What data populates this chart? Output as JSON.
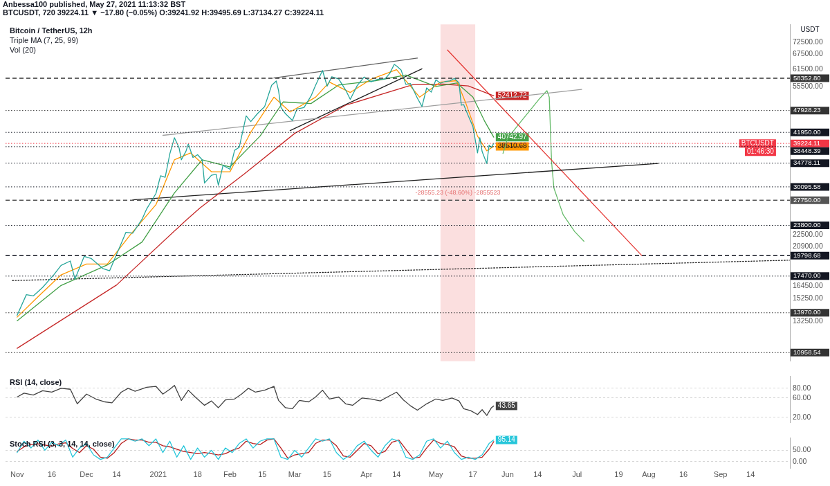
{
  "chart_data": [
    {
      "type": "other",
      "title": "Anbessa100 published, May 27, 2021 11:13:32 BST",
      "annotations": [
        "BTCUSDT, 720  39224.11 ▼ −17.80 (−0.05%) O:39241.92 H:39495.69 L:37134.27 C:39224.11"
      ]
    },
    {
      "type": "line",
      "title": "Bitcoin / TetherUS, 12h",
      "ylabel": "USDT",
      "log": true,
      "marker": "none",
      "tick_labels": "y",
      "xlim": [
        "2020-10-27",
        "2021-10-01"
      ],
      "ylim": [
        10400,
        81000
      ],
      "yticks": [
        {
          "value": 13250,
          "label": "13250.00"
        },
        {
          "value": 15250,
          "label": "15250.00"
        },
        {
          "value": 16450,
          "label": "16450.00"
        },
        {
          "value": 20900,
          "label": "20900.00"
        },
        {
          "value": 22500,
          "label": "22500.00"
        },
        {
          "value": 55500,
          "label": "55500.00"
        },
        {
          "value": 61500,
          "label": "61500.00"
        },
        {
          "value": 67500,
          "label": "67500.00"
        },
        {
          "value": 72500,
          "label": "72500.00"
        }
      ],
      "series": [
        {
          "color": "#26a69a",
          "x": [
            "2020-11-01",
            "2020-11-05",
            "2020-11-08",
            "2020-11-12",
            "2020-11-17",
            "2020-11-20",
            "2020-11-24",
            "2020-11-26",
            "2020-11-30",
            "2020-12-03",
            "2020-12-08",
            "2020-12-11",
            "2020-12-16",
            "2020-12-18",
            "2020-12-21",
            "2020-12-25",
            "2020-12-27",
            "2020-12-31",
            "2021-01-02",
            "2021-01-04",
            "2021-01-06",
            "2021-01-08",
            "2021-01-10",
            "2021-01-11",
            "2021-01-13",
            "2021-01-14",
            "2021-01-16",
            "2021-01-18",
            "2021-01-20",
            "2021-01-21",
            "2021-01-24",
            "2021-01-26",
            "2021-01-27",
            "2021-01-29",
            "2021-02-01",
            "2021-02-03",
            "2021-02-05",
            "2021-02-08",
            "2021-02-10",
            "2021-02-13",
            "2021-02-16",
            "2021-02-19",
            "2021-02-21",
            "2021-02-22",
            "2021-02-23",
            "2021-02-25",
            "2021-02-28",
            "2021-03-02",
            "2021-03-05",
            "2021-03-08",
            "2021-03-10",
            "2021-03-13",
            "2021-03-15",
            "2021-03-17",
            "2021-03-20",
            "2021-03-23",
            "2021-03-25",
            "2021-03-28",
            "2021-03-31",
            "2021-04-03",
            "2021-04-06",
            "2021-04-09",
            "2021-04-11",
            "2021-04-13",
            "2021-04-14",
            "2021-04-16",
            "2021-04-18",
            "2021-04-20",
            "2021-04-23",
            "2021-04-25",
            "2021-04-27",
            "2021-04-29",
            "2021-05-01",
            "2021-05-03",
            "2021-05-05",
            "2021-05-07",
            "2021-05-09",
            "2021-05-11",
            "2021-05-12",
            "2021-05-13",
            "2021-05-15",
            "2021-05-17",
            "2021-05-19",
            "2021-05-20",
            "2021-05-21",
            "2021-05-23",
            "2021-05-24",
            "2021-05-25",
            "2021-05-26"
          ],
          "values": [
            13750,
            15600,
            15480,
            16300,
            17650,
            18650,
            19150,
            17150,
            19700,
            19450,
            18300,
            18050,
            21300,
            22800,
            22700,
            24700,
            26300,
            28900,
            32200,
            31900,
            36800,
            40600,
            38200,
            35500,
            37400,
            39100,
            36000,
            36600,
            35500,
            30800,
            32300,
            32500,
            30400,
            34300,
            33500,
            37600,
            38300,
            46400,
            44800,
            47100,
            49100,
            55900,
            57400,
            54100,
            48900,
            47000,
            45100,
            48400,
            48800,
            52300,
            55900,
            61200,
            55600,
            58900,
            58100,
            54300,
            51300,
            55800,
            58800,
            57100,
            58000,
            58100,
            60000,
            63500,
            62900,
            61300,
            56200,
            56500,
            51700,
            49100,
            55000,
            53600,
            57800,
            56600,
            57200,
            57400,
            58300,
            56700,
            49500,
            49700,
            46400,
            43500,
            37000,
            40600,
            37300,
            34700,
            38800,
            38300,
            39224.11
          ]
        },
        {
          "color": "#ff9800",
          "x": [
            "2020-11-01",
            "2020-11-10",
            "2020-11-20",
            "2020-12-01",
            "2020-12-10",
            "2020-12-20",
            "2020-12-31",
            "2021-01-08",
            "2021-01-15",
            "2021-01-24",
            "2021-02-01",
            "2021-02-10",
            "2021-02-20",
            "2021-02-27",
            "2021-03-10",
            "2021-03-16",
            "2021-03-25",
            "2021-04-03",
            "2021-04-14",
            "2021-04-24",
            "2021-05-03",
            "2021-05-10",
            "2021-05-14",
            "2021-05-19",
            "2021-05-23",
            "2021-05-26"
          ],
          "values": [
            13600,
            15400,
            17600,
            18800,
            18800,
            22500,
            27000,
            35500,
            37000,
            33000,
            33000,
            42000,
            52000,
            47500,
            52000,
            57000,
            53500,
            58000,
            61500,
            52000,
            57000,
            57500,
            50000,
            41000,
            37500,
            38510.69
          ],
          "value_labels": [
            null,
            null,
            null,
            null,
            null,
            null,
            null,
            null,
            null,
            null,
            null,
            null,
            null,
            null,
            null,
            null,
            null,
            null,
            null,
            null,
            null,
            null,
            null,
            null,
            null,
            "38510.69"
          ]
        },
        {
          "color": "#43a047",
          "x": [
            "2020-11-01",
            "2020-11-20",
            "2020-12-10",
            "2020-12-25",
            "2021-01-08",
            "2021-01-20",
            "2021-02-01",
            "2021-02-14",
            "2021-02-24",
            "2021-03-08",
            "2021-03-20",
            "2021-04-05",
            "2021-04-18",
            "2021-05-01",
            "2021-05-10",
            "2021-05-17",
            "2021-05-22",
            "2021-05-26"
          ],
          "values": [
            13300,
            16500,
            18700,
            21500,
            29000,
            35500,
            34000,
            41000,
            50500,
            50000,
            56000,
            57500,
            59500,
            55500,
            56700,
            52000,
            45000,
            40742.97
          ],
          "value_labels": [
            null,
            null,
            null,
            null,
            null,
            null,
            null,
            null,
            null,
            null,
            null,
            null,
            null,
            null,
            null,
            null,
            null,
            "40742.97"
          ]
        },
        {
          "color": "#c62828",
          "x": [
            "2020-11-01",
            "2020-12-14",
            "2021-01-13",
            "2021-01-19",
            "2021-02-07",
            "2021-03-01",
            "2021-03-23",
            "2021-04-21",
            "2021-05-04",
            "2021-05-15",
            "2021-05-26"
          ],
          "values": [
            11250,
            16550,
            24550,
            26450,
            32500,
            41700,
            49500,
            56100,
            56300,
            55700,
            52412.72
          ],
          "value_labels": [
            null,
            null,
            null,
            null,
            null,
            null,
            null,
            null,
            null,
            null,
            "52412.72"
          ]
        },
        {
          "color": "#212121",
          "x": [
            "2020-12-21",
            "2021-08-05"
          ],
          "values": [
            27800,
            34700
          ]
        },
        {
          "color": "#9e9e9e",
          "x": [
            "2021-01-03",
            "2021-07-03"
          ],
          "values": [
            41200,
            54500
          ]
        },
        {
          "color": "#616161",
          "x": [
            "2021-02-20",
            "2021-04-23"
          ],
          "values": [
            58450,
            66000
          ]
        },
        {
          "color": "#212121",
          "x": [
            "2021-02-27",
            "2021-04-25"
          ],
          "values": [
            42400,
            61800
          ]
        },
        {
          "color": "#e53935",
          "x": [
            "2021-05-06",
            "2021-07-29"
          ],
          "values": [
            69300,
            19800
          ]
        },
        {
          "color": "#66bb6a",
          "x": [
            "2021-05-30",
            "2021-06-01",
            "2021-06-08",
            "2021-06-15",
            "2021-06-18",
            "2021-06-19",
            "2021-06-20",
            "2021-06-21",
            "2021-06-25",
            "2021-06-30",
            "2021-07-04"
          ],
          "values": [
            36900,
            40500,
            45800,
            51700,
            54100,
            52000,
            35100,
            29900,
            25400,
            22900,
            21600
          ]
        },
        {
          "color": "#212121",
          "line_style": "dotted",
          "x": [
            "2020-10-30",
            "2021-10-01"
          ],
          "values": [
            17000,
            19250
          ]
        }
      ],
      "ref_lines": [
        {
          "axis": "y",
          "value": 58352.8,
          "label": "58352.80",
          "color": "#333333",
          "line_style": "dashed"
        },
        {
          "axis": "y",
          "value": 47928.23,
          "label": "47928.23",
          "color": "#333333",
          "line_style": "dotted"
        },
        {
          "axis": "y",
          "value": 41950,
          "label": "41950.00",
          "color": "#131722",
          "line_style": "dotted"
        },
        {
          "axis": "y",
          "value": 39224.11,
          "label": "39224.11",
          "color": "#f23645",
          "line_style": "dotted"
        },
        {
          "axis": "y",
          "value": 38448.39,
          "label": "38448.39",
          "color": "#131722",
          "line_style": "dotted"
        },
        {
          "axis": "y",
          "value": 34778.11,
          "label": "34778.11",
          "color": "#131722",
          "line_style": "dotted"
        },
        {
          "axis": "y",
          "value": 30095.58,
          "label": "30095.58",
          "color": "#131722",
          "line_style": "dotted"
        },
        {
          "axis": "y",
          "value": 27750,
          "label": "27750.00",
          "color": "#555555",
          "line_style": "dashed"
        },
        {
          "axis": "y",
          "value": 23800,
          "label": "23800.00",
          "color": "#131722",
          "line_style": "dotted"
        },
        {
          "axis": "y",
          "value": 19798.68,
          "label": "19798.68",
          "color": "#131722",
          "line_style": "dashed"
        },
        {
          "axis": "y",
          "value": 17470,
          "label": "17470.00",
          "color": "#131722",
          "line_style": "dotted"
        },
        {
          "axis": "y",
          "value": 13970,
          "label": "13970.00",
          "color": "#333333",
          "line_style": "dotted"
        },
        {
          "axis": "y",
          "value": 10958.54,
          "label": "10958.54",
          "color": "#333333",
          "line_style": "dotted"
        }
      ],
      "bands": [
        {
          "axis": "x",
          "from": "2021-05-03",
          "to": "2021-05-18",
          "label": "-28555.23 (-48.60%) -2855523",
          "color": "#f8c9c9"
        }
      ],
      "annotations": [
        "Triple MA (7, 25, 99)",
        "Vol (20)",
        {
          "text": "BTCUSDT",
          "x": "2021-09-25",
          "y": 39224.11
        },
        {
          "text": "01:46:30",
          "x": "2021-09-25",
          "y": 39224.11
        }
      ]
    },
    {
      "type": "line",
      "title": "RSI (14, close)",
      "marker": "none",
      "grid": "y",
      "tick_labels": "y",
      "xlim": [
        "2020-10-27",
        "2021-10-01"
      ],
      "ylim": [
        9,
        105
      ],
      "yticks": [
        {
          "value": 20,
          "label": "20.00"
        },
        {
          "value": 60,
          "label": "60.00"
        },
        {
          "value": 80,
          "label": "80.00"
        }
      ],
      "series": [
        {
          "color": "#424242",
          "x": [
            "2020-11-01",
            "2020-11-04",
            "2020-11-08",
            "2020-11-12",
            "2020-11-16",
            "2020-11-20",
            "2020-11-24",
            "2020-11-27",
            "2020-12-01",
            "2020-12-05",
            "2020-12-09",
            "2020-12-12",
            "2020-12-16",
            "2020-12-19",
            "2020-12-22",
            "2020-12-27",
            "2020-12-31",
            "2021-01-03",
            "2021-01-06",
            "2021-01-08",
            "2021-01-11",
            "2021-01-14",
            "2021-01-17",
            "2021-01-21",
            "2021-01-24",
            "2021-01-27",
            "2021-01-30",
            "2021-02-03",
            "2021-02-06",
            "2021-02-09",
            "2021-02-12",
            "2021-02-16",
            "2021-02-20",
            "2021-02-22",
            "2021-02-25",
            "2021-02-28",
            "2021-03-03",
            "2021-03-07",
            "2021-03-10",
            "2021-03-13",
            "2021-03-16",
            "2021-03-20",
            "2021-03-23",
            "2021-03-26",
            "2021-03-30",
            "2021-04-03",
            "2021-04-07",
            "2021-04-10",
            "2021-04-14",
            "2021-04-17",
            "2021-04-20",
            "2021-04-23",
            "2021-04-27",
            "2021-05-01",
            "2021-05-04",
            "2021-05-08",
            "2021-05-11",
            "2021-05-13",
            "2021-05-16",
            "2021-05-19",
            "2021-05-21",
            "2021-05-23",
            "2021-05-25",
            "2021-05-26"
          ],
          "values": [
            62,
            70,
            66,
            75,
            72,
            80,
            78,
            48,
            68,
            58,
            52,
            50,
            72,
            80,
            74,
            82,
            84,
            68,
            78,
            86,
            55,
            76,
            62,
            45,
            54,
            40,
            56,
            58,
            68,
            80,
            72,
            76,
            84,
            55,
            40,
            38,
            55,
            52,
            62,
            76,
            58,
            62,
            48,
            45,
            60,
            58,
            54,
            62,
            72,
            56,
            44,
            35,
            48,
            58,
            55,
            60,
            54,
            38,
            34,
            26,
            36,
            24,
            40,
            43.65
          ],
          "value_labels": [
            null,
            null,
            null,
            null,
            null,
            null,
            null,
            null,
            null,
            null,
            null,
            null,
            null,
            null,
            null,
            null,
            null,
            null,
            null,
            null,
            null,
            null,
            null,
            null,
            null,
            null,
            null,
            null,
            null,
            null,
            null,
            null,
            null,
            null,
            null,
            null,
            null,
            null,
            null,
            null,
            null,
            null,
            null,
            null,
            null,
            null,
            null,
            null,
            null,
            null,
            null,
            null,
            null,
            null,
            null,
            null,
            null,
            null,
            null,
            null,
            null,
            null,
            null,
            "43.65"
          ]
        }
      ]
    },
    {
      "type": "line",
      "title": "Stoch RSI (3, 3, 14, 14, close)",
      "marker": "none",
      "grid": "y",
      "xlim": [
        "2020-10-27",
        "2021-10-01"
      ],
      "xticks": [
        {
          "value": "2020-11-01",
          "label": "Nov"
        },
        {
          "value": "2020-11-16",
          "label": "16"
        },
        {
          "value": "2020-12-01",
          "label": "Dec"
        },
        {
          "value": "2020-12-14",
          "label": "14"
        },
        {
          "value": "2021-01-01",
          "label": "2021"
        },
        {
          "value": "2021-01-18",
          "label": "18"
        },
        {
          "value": "2021-02-01",
          "label": "Feb"
        },
        {
          "value": "2021-02-15",
          "label": "15"
        },
        {
          "value": "2021-03-01",
          "label": "Mar"
        },
        {
          "value": "2021-03-15",
          "label": "15"
        },
        {
          "value": "2021-04-01",
          "label": "Apr"
        },
        {
          "value": "2021-04-14",
          "label": "14"
        },
        {
          "value": "2021-05-01",
          "label": "May"
        },
        {
          "value": "2021-05-17",
          "label": "17"
        },
        {
          "value": "2021-06-01",
          "label": "Jun"
        },
        {
          "value": "2021-06-14",
          "label": "14"
        },
        {
          "value": "2021-07-01",
          "label": "Jul"
        },
        {
          "value": "2021-07-19",
          "label": "19"
        },
        {
          "value": "2021-08-01",
          "label": "Aug"
        },
        {
          "value": "2021-08-16",
          "label": "16"
        },
        {
          "value": "2021-09-01",
          "label": "Sep"
        },
        {
          "value": "2021-09-14",
          "label": "14"
        }
      ],
      "ylim": [
        -30,
        105
      ],
      "yticks": [
        {
          "value": 0,
          "label": "0.00"
        },
        {
          "value": 50,
          "label": "50.00"
        }
      ],
      "x": [
        "2020-11-01",
        "2020-11-04",
        "2020-11-07",
        "2020-11-10",
        "2020-11-13",
        "2020-11-16",
        "2020-11-19",
        "2020-11-22",
        "2020-11-25",
        "2020-11-28",
        "2020-12-01",
        "2020-12-04",
        "2020-12-07",
        "2020-12-10",
        "2020-12-13",
        "2020-12-16",
        "2020-12-19",
        "2020-12-22",
        "2020-12-25",
        "2020-12-28",
        "2020-12-31",
        "2021-01-03",
        "2021-01-06",
        "2021-01-09",
        "2021-01-12",
        "2021-01-15",
        "2021-01-18",
        "2021-01-21",
        "2021-01-24",
        "2021-01-27",
        "2021-01-30",
        "2021-02-02",
        "2021-02-05",
        "2021-02-08",
        "2021-02-11",
        "2021-02-14",
        "2021-02-17",
        "2021-02-20",
        "2021-02-23",
        "2021-02-26",
        "2021-03-01",
        "2021-03-04",
        "2021-03-07",
        "2021-03-10",
        "2021-03-13",
        "2021-03-16",
        "2021-03-19",
        "2021-03-22",
        "2021-03-25",
        "2021-03-28",
        "2021-03-31",
        "2021-04-03",
        "2021-04-06",
        "2021-04-09",
        "2021-04-12",
        "2021-04-15",
        "2021-04-18",
        "2021-04-21",
        "2021-04-24",
        "2021-04-27",
        "2021-04-30",
        "2021-05-03",
        "2021-05-06",
        "2021-05-09",
        "2021-05-12",
        "2021-05-15",
        "2021-05-18",
        "2021-05-21",
        "2021-05-24",
        "2021-05-26"
      ],
      "series": [
        {
          "color": "#26c6da",
          "values": [
            40,
            90,
            60,
            95,
            50,
            85,
            70,
            95,
            20,
            60,
            80,
            30,
            10,
            20,
            60,
            100,
            100,
            90,
            100,
            70,
            100,
            40,
            90,
            20,
            70,
            10,
            60,
            20,
            50,
            10,
            60,
            40,
            80,
            100,
            60,
            90,
            100,
            100,
            20,
            10,
            50,
            20,
            60,
            100,
            90,
            100,
            40,
            10,
            30,
            70,
            90,
            50,
            20,
            70,
            100,
            90,
            20,
            10,
            30,
            90,
            100,
            60,
            90,
            40,
            10,
            20,
            10,
            30,
            80,
            95.14
          ],
          "value_labels": [
            null,
            null,
            null,
            null,
            null,
            null,
            null,
            null,
            null,
            null,
            null,
            null,
            null,
            null,
            null,
            null,
            null,
            null,
            null,
            null,
            null,
            null,
            null,
            null,
            null,
            null,
            null,
            null,
            null,
            null,
            null,
            null,
            null,
            null,
            null,
            null,
            null,
            null,
            null,
            null,
            null,
            null,
            null,
            null,
            null,
            null,
            null,
            null,
            null,
            null,
            null,
            null,
            null,
            null,
            null,
            null,
            null,
            null,
            null,
            null,
            null,
            null,
            null,
            null,
            null,
            null,
            null,
            null,
            null,
            "95.14"
          ]
        },
        {
          "color": "#b71c1c",
          "values": [
            45,
            65,
            75,
            78,
            73,
            68,
            78,
            83,
            58,
            40,
            70,
            55,
            20,
            15,
            40,
            80,
            100,
            95,
            95,
            85,
            85,
            70,
            65,
            55,
            45,
            40,
            35,
            40,
            35,
            30,
            35,
            50,
            60,
            90,
            80,
            75,
            95,
            100,
            60,
            15,
            30,
            35,
            40,
            80,
            95,
            95,
            70,
            25,
            20,
            50,
            80,
            70,
            35,
            45,
            85,
            95,
            55,
            15,
            20,
            60,
            95,
            80,
            75,
            65,
            25,
            15,
            15,
            20,
            55,
            88
          ]
        }
      ]
    }
  ]
}
